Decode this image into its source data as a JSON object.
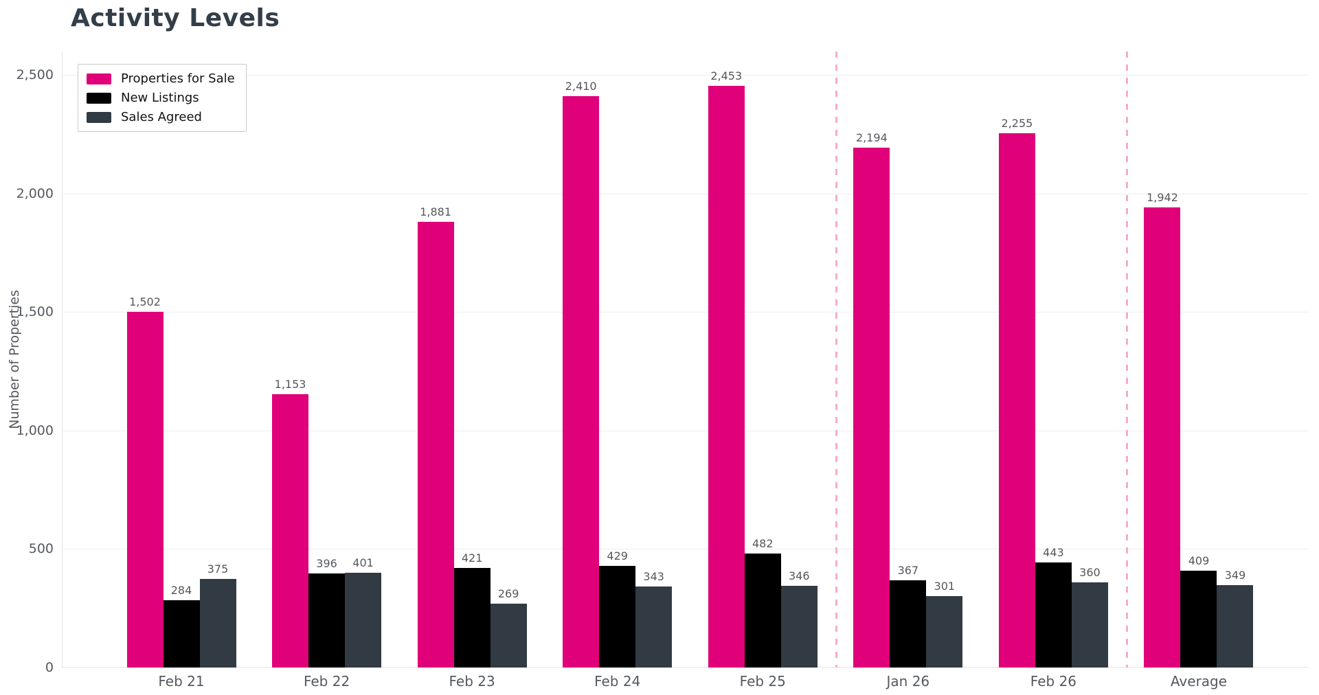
{
  "page": {
    "title": "Activity Levels"
  },
  "chart_data": {
    "type": "bar",
    "title": "Activity Levels",
    "ylabel": "Number of Properties",
    "xlabel": "",
    "ylim": [
      0,
      2500
    ],
    "yticks": [
      0,
      500,
      1000,
      1500,
      2000,
      2500
    ],
    "ytick_labels": [
      "0",
      "500",
      "1,000",
      "1,500",
      "2,000",
      "2,500"
    ],
    "categories": [
      "Feb 21",
      "Feb 22",
      "Feb 23",
      "Feb 24",
      "Feb 25",
      "Jan 26",
      "Feb 26",
      "Average"
    ],
    "series": [
      {
        "name": "Properties for Sale",
        "color": "#E0007A",
        "values": [
          1502,
          1153,
          1881,
          2410,
          2453,
          2194,
          2255,
          1942
        ]
      },
      {
        "name": "New Listings",
        "color": "#000000",
        "values": [
          284,
          396,
          421,
          429,
          482,
          367,
          443,
          409
        ]
      },
      {
        "name": "Sales Agreed",
        "color": "#323A44",
        "values": [
          375,
          401,
          269,
          343,
          346,
          301,
          360,
          349
        ]
      }
    ],
    "separators_after_index": [
      4,
      6
    ],
    "legend_position": "top-left",
    "grid": true,
    "bar_value_labels": true
  },
  "colors": {
    "background": "#FFFFFF",
    "title_text": "#333E48",
    "axis_text": "#55585E",
    "value_label_text": "#54575B",
    "legend_text": "#121212",
    "grid_line": "#EDEDF0",
    "axis_line": "#E2E2E6",
    "separator_line": "#F6ABCF"
  }
}
